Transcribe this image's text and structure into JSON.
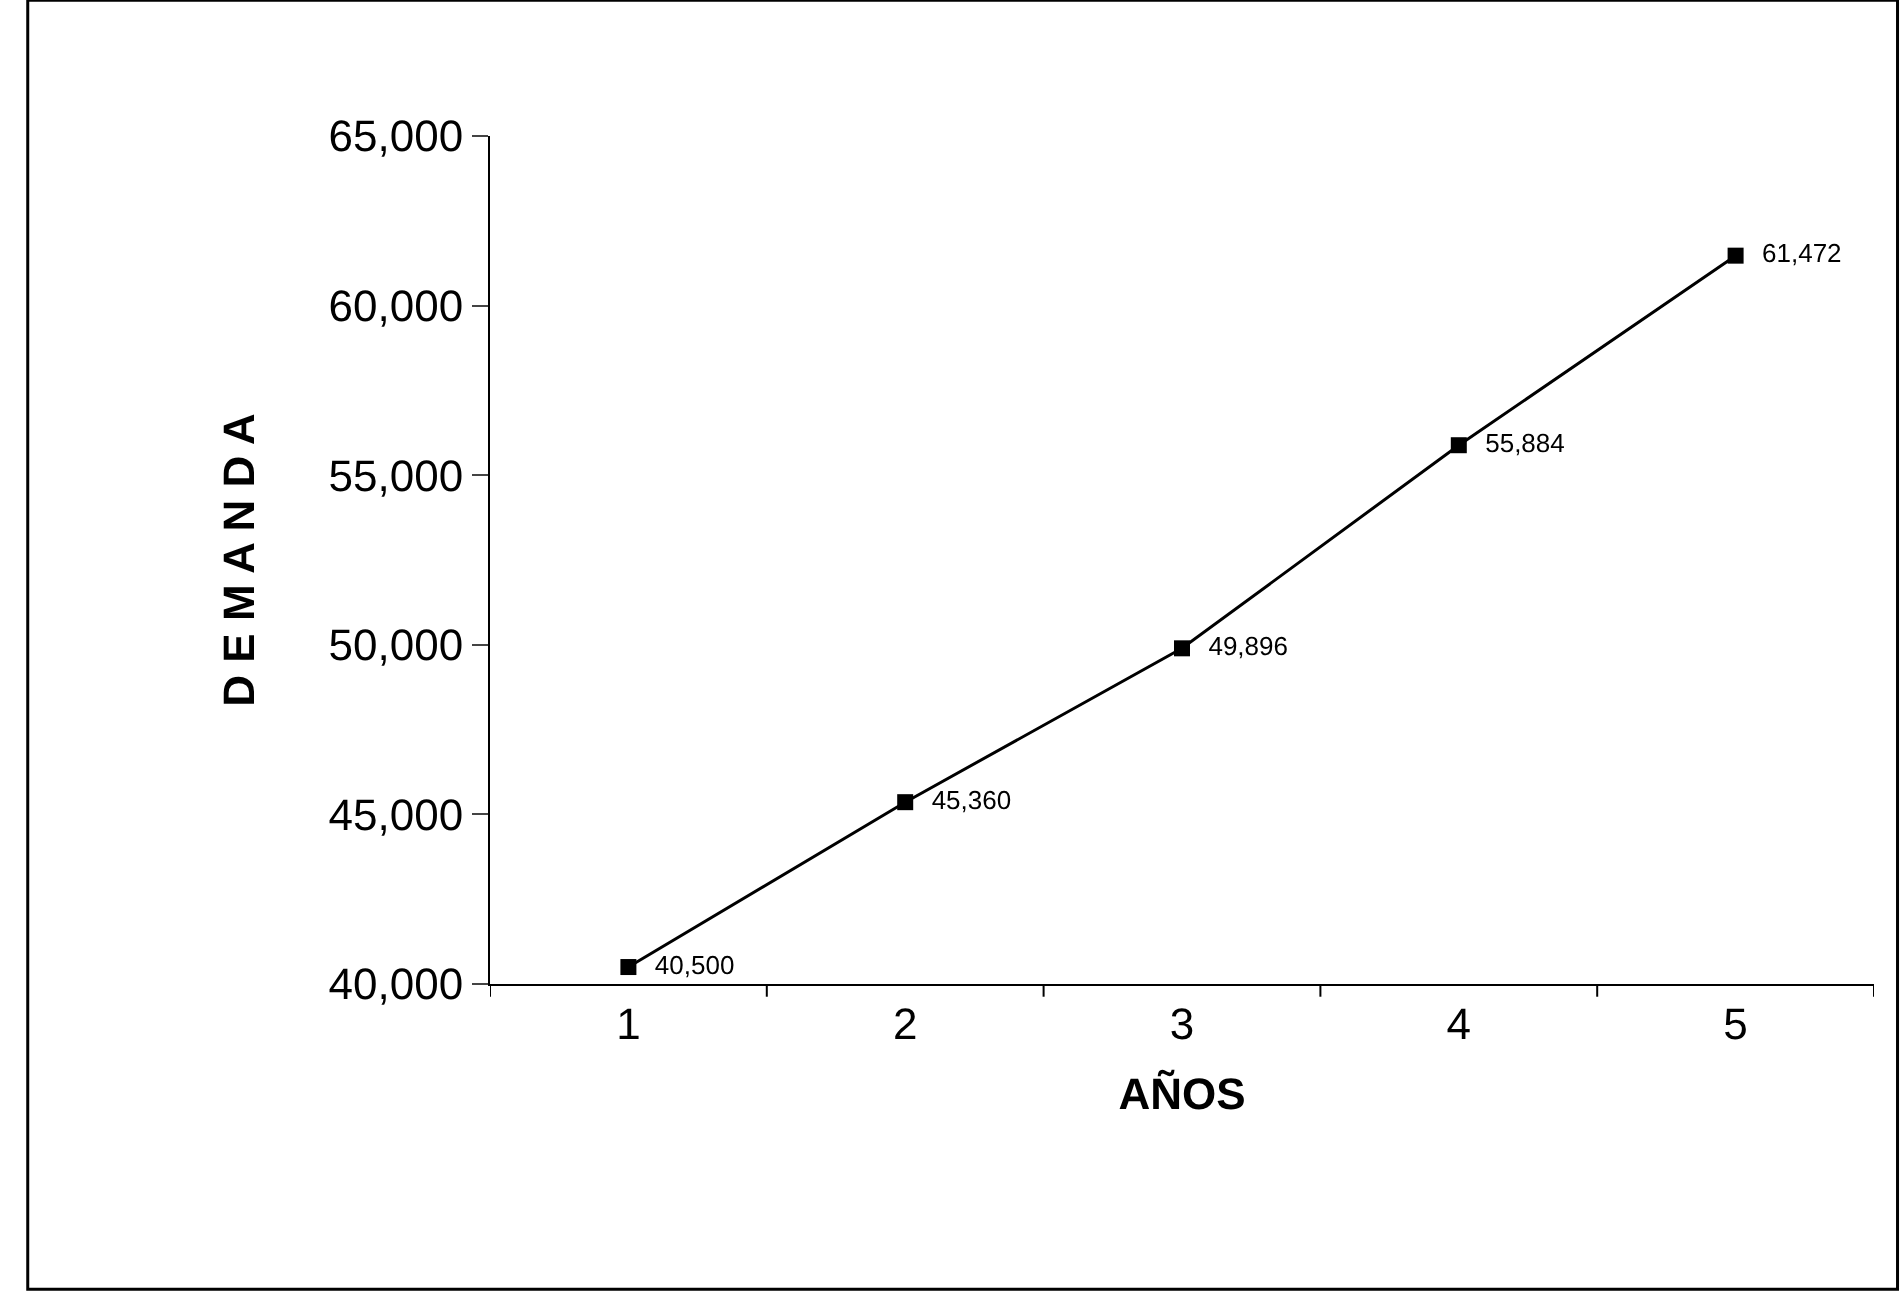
{
  "chart_data": {
    "type": "line",
    "xlabel": "AÑOS",
    "ylabel": "D E M A N D A",
    "categories": [
      "1",
      "2",
      "3",
      "4",
      "5"
    ],
    "series": [
      {
        "color": "#000000",
        "values": [
          40500,
          45360,
          49896,
          55884,
          61472
        ],
        "value_labels": [
          "40,500",
          "45,360",
          "49,896",
          "55,884",
          "61,472"
        ]
      }
    ],
    "ylim": [
      40000,
      65000
    ],
    "yticks": [
      {
        "value": 40000,
        "label": "40,000"
      },
      {
        "value": 45000,
        "label": "45,000"
      },
      {
        "value": 50000,
        "label": "50,000"
      },
      {
        "value": 55000,
        "label": "55,000"
      },
      {
        "value": 60000,
        "label": "60,000"
      },
      {
        "value": 65000,
        "label": "65,000"
      }
    ],
    "marker": "square",
    "line_style": "solid"
  }
}
